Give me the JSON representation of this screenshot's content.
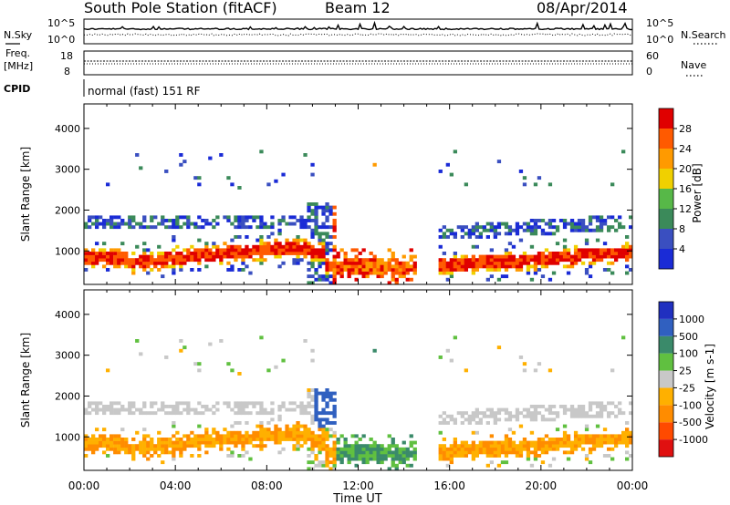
{
  "header": {
    "station": "South Pole Station (fitACF)",
    "beam": "Beam 12",
    "date": "08/Apr/2014"
  },
  "status_panels": {
    "nsky_label": "N.Sky",
    "nsearch_label": "N.Search",
    "noise_ticks_left": [
      "10^5",
      "10^0"
    ],
    "noise_ticks_right": [
      "10^5",
      "10^0"
    ],
    "freq_label": "Freq.",
    "freq_unit": "[MHz]",
    "freq_ticks": [
      "18",
      "8"
    ],
    "nave_label": "Nave",
    "nave_ticks": [
      "60",
      "0"
    ],
    "cpid_label": "CPID",
    "cpid_text": "normal (fast) 151 RF"
  },
  "colors": {
    "power_scale": [
      "#1a2bd6",
      "#3a4fc0",
      "#3b8a5a",
      "#57b848",
      "#f0d000",
      "#ff9a00",
      "#ff5a00",
      "#e00000"
    ],
    "velocity_scale": [
      "#e01010",
      "#ff4a00",
      "#ff8c00",
      "#ffb000",
      "#c8c8c8",
      "#60c040",
      "#3a8a6a",
      "#3060c0",
      "#2030c0"
    ]
  },
  "chart_data": [
    {
      "type": "heatmap",
      "title": "Power",
      "xlabel": "Time UT",
      "ylabel": "Slant Range [km]",
      "x_ticks": [
        "00:00",
        "04:00",
        "08:00",
        "12:00",
        "16:00",
        "20:00",
        "00:00"
      ],
      "y_ticks": [
        1000,
        2000,
        3000,
        4000
      ],
      "xlim_hours": [
        0,
        24
      ],
      "ylim_km": [
        180,
        4600
      ],
      "colorbar": {
        "label": "Power [dB]",
        "ticks": [
          "4",
          "8",
          "12",
          "16",
          "20",
          "24",
          "28"
        ]
      }
    },
    {
      "type": "heatmap",
      "title": "Velocity",
      "xlabel": "Time UT",
      "ylabel": "Slant Range [km]",
      "x_ticks": [
        "00:00",
        "04:00",
        "08:00",
        "12:00",
        "16:00",
        "20:00",
        "00:00"
      ],
      "y_ticks": [
        1000,
        2000,
        3000,
        4000
      ],
      "xlim_hours": [
        0,
        24
      ],
      "ylim_km": [
        180,
        4600
      ],
      "colorbar": {
        "label": "Velocity [m s-1]",
        "ticks": [
          "1000",
          "500",
          "100",
          "25",
          "-25",
          "-100",
          "-500",
          "-1000"
        ]
      }
    }
  ],
  "axis_title": "Time UT"
}
